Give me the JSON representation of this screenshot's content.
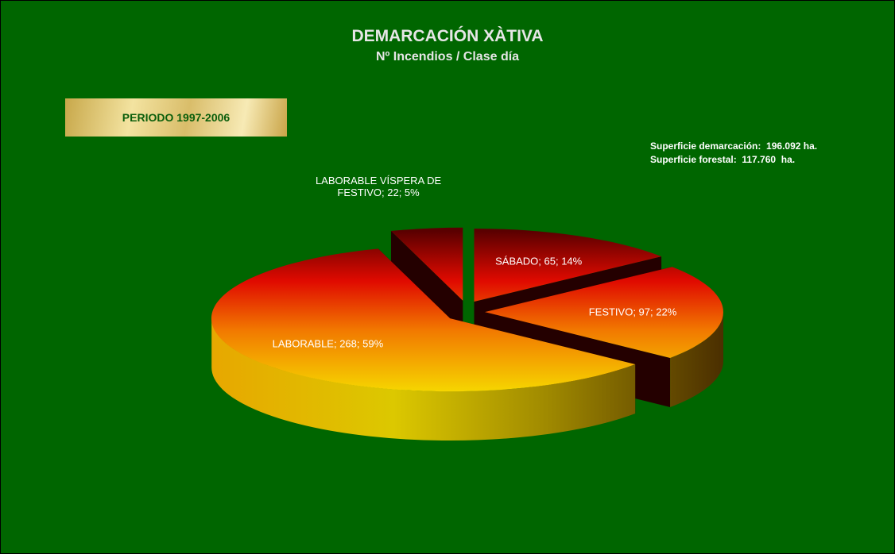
{
  "chart_data": {
    "type": "pie3d",
    "title": "DEMARCACIÓN XÀTIVA",
    "subtitle": "Nº Incendios / Clase día",
    "period": "PERIODO 1997-2006",
    "annotations": [
      "Superficie demarcación:  196.092 ha.",
      "Superficie forestal:  117.760  ha."
    ],
    "values": [
      65,
      97,
      268,
      22
    ],
    "value_labels": [
      "SÁBADO; 65; 14%",
      "FESTIVO; 97; 22%",
      "LABORABLE; 268; 59%",
      "LABORABLE VÍSPERA DE FESTIVO; 22; 5%"
    ]
  }
}
